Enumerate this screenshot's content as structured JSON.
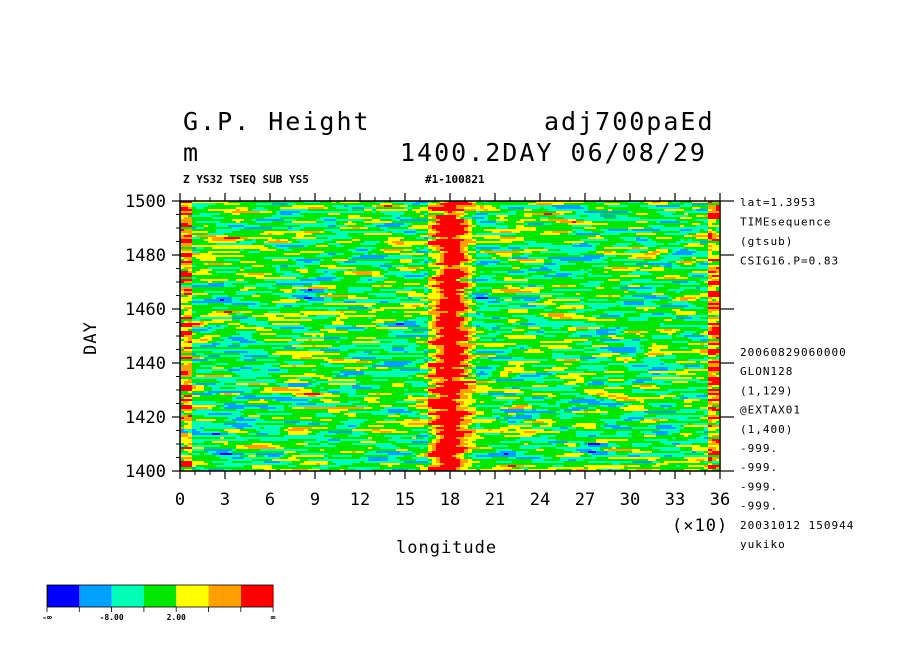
{
  "header": {
    "title_left": "G.P. Height",
    "title_right": "adj700paEd",
    "units": "m",
    "time_label": "1400.2DAY 06/08/29",
    "sub_left": "Z YS32 TSEQ SUB YS5",
    "sub_right": "#1-100821"
  },
  "side_info": {
    "top": [
      "lat=1.3953",
      "TIMEsequence",
      "(gtsub)",
      "CSIG16.P=0.83"
    ],
    "bottom": [
      "20060829060000",
      "GLON128",
      "(1,129)",
      "@EXTAX01",
      "(1,400)",
      "-999.",
      "-999.",
      "-999.",
      "-999.",
      "20031012 150944",
      "yukiko"
    ]
  },
  "legend": {
    "colors": [
      "#0000ff",
      "#00a0ff",
      "#00ffb4",
      "#00e600",
      "#ffff00",
      "#ffa000",
      "#ff0000"
    ],
    "labels": [
      "-∞",
      "-8.00",
      "2.00",
      "∞"
    ]
  },
  "chart_data": {
    "type": "heatmap",
    "title": "G.P. Height",
    "xlabel": "longitude",
    "xscale_note": "(×10)",
    "ylabel": "DAY",
    "xlim": [
      0,
      36
    ],
    "ylim": [
      1400,
      1500
    ],
    "x_ticks": [
      "0",
      "3",
      "6",
      "9",
      "12",
      "15",
      "18",
      "21",
      "24",
      "27",
      "30",
      "33",
      "36"
    ],
    "y_ticks": [
      "1400",
      "1420",
      "1440",
      "1460",
      "1480",
      "1500"
    ],
    "x_units": "longitude (×10 deg)",
    "color_levels": [
      "-∞",
      "-8.00",
      "2.00",
      "∞"
    ],
    "description_bands": [
      {
        "x_range": [
          16.5,
          19.5
        ],
        "level": "high (orange/red)"
      },
      {
        "x_range": [
          0,
          0.5
        ],
        "level": "high (orange/red)"
      },
      {
        "x_range": [
          35.5,
          36
        ],
        "level": "high (orange/red)"
      }
    ],
    "background_level": "near zero (green/cyan/yellow)",
    "grid": false
  }
}
